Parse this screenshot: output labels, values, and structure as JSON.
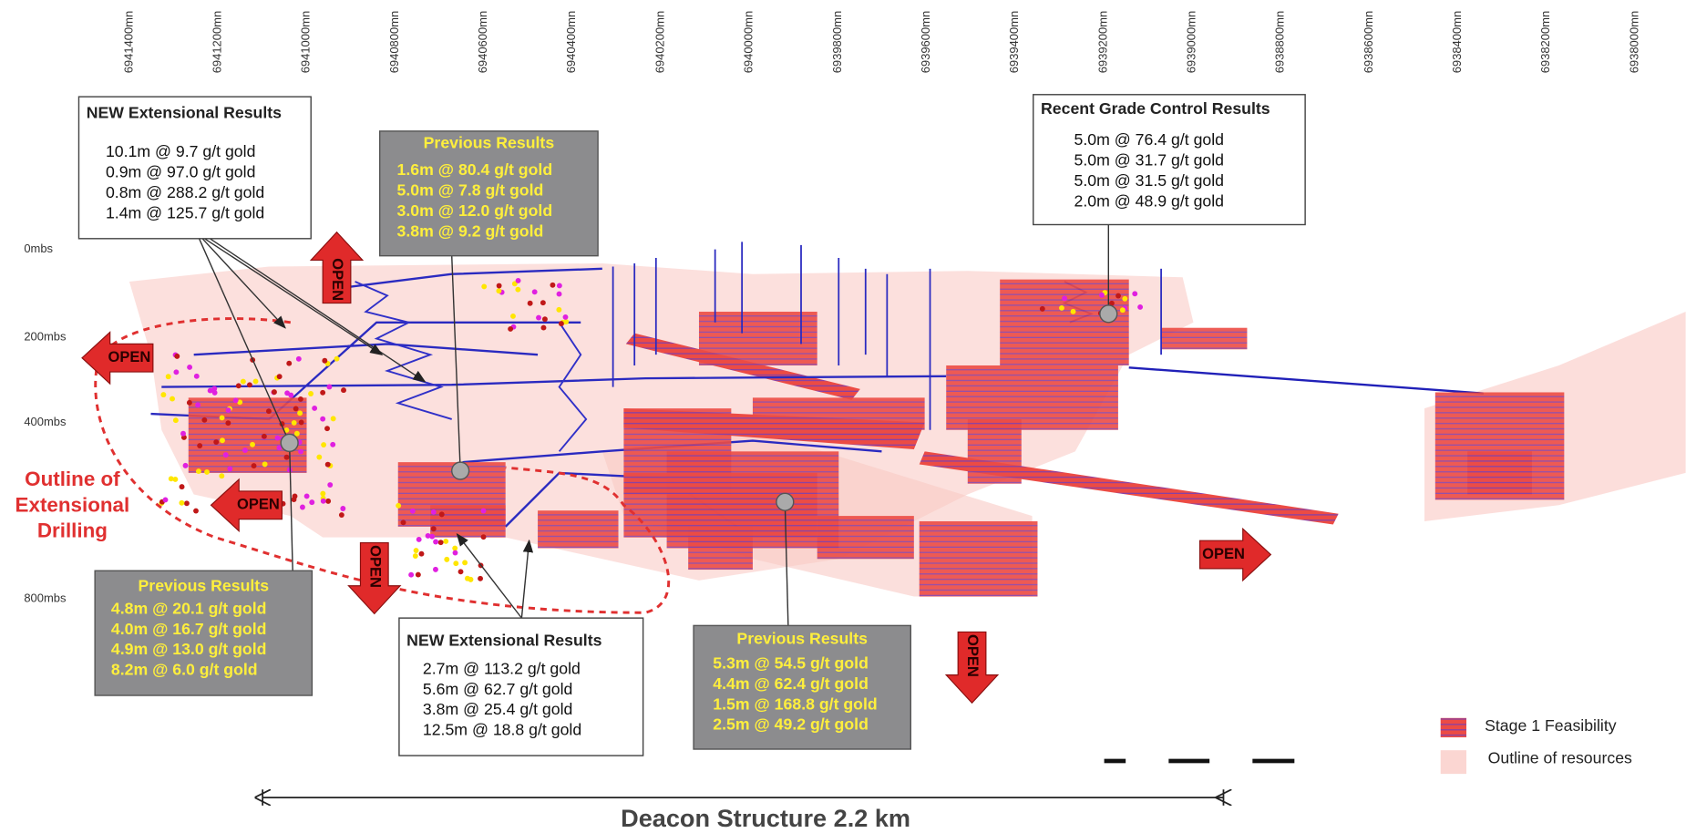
{
  "northings": [
    "6941400mn",
    "6941200mn",
    "6941000mn",
    "6940800mn",
    "6940600mn",
    "6940400mn",
    "6940200mn",
    "6940000mn",
    "6939800mn",
    "6939600mn",
    "6939400mn",
    "6939200mn",
    "6939000mn",
    "6938800mn",
    "6938600mn",
    "6938400mn",
    "6938200mn",
    "6938000mn"
  ],
  "depths": [
    "0mbs",
    "200mbs",
    "400mbs",
    "800mbs"
  ],
  "callouts": [
    {
      "title": "NEW Extensional Results",
      "lines": [
        "10.1m @ 9.7 g/t gold",
        "0.9m @ 97.0 g/t gold",
        "0.8m @ 288.2 g/t gold",
        "1.4m @ 125.7 g/t gold"
      ]
    },
    {
      "title": "Previous  Results",
      "lines": [
        "1.6m @ 80.4 g/t gold",
        "5.0m @ 7.8 g/t gold",
        "3.0m @ 12.0 g/t gold",
        "3.8m @ 9.2 g/t gold"
      ]
    },
    {
      "title": "Recent Grade Control Results",
      "lines": [
        "5.0m @ 76.4 g/t gold",
        "5.0m @ 31.7 g/t gold",
        "5.0m @ 31.5 g/t gold",
        "2.0m @ 48.9 g/t gold"
      ]
    },
    {
      "title": "Previous  Results",
      "lines": [
        "4.8m @ 20.1 g/t gold",
        "4.0m @ 16.7 g/t gold",
        "4.9m @ 13.0 g/t gold",
        "8.2m @ 6.0 g/t gold"
      ]
    },
    {
      "title": "NEW Extensional Results",
      "lines": [
        "2.7m @ 113.2 g/t gold",
        "5.6m @ 62.7 g/t gold",
        "3.8m @ 25.4 g/t gold",
        "12.5m @ 18.8 g/t gold"
      ]
    },
    {
      "title": "Previous  Results",
      "lines": [
        "5.3m @ 54.5 g/t gold",
        "4.4m @ 62.4 g/t gold",
        "1.5m @ 168.8 g/t gold",
        "2.5m @ 49.2 g/t gold"
      ]
    }
  ],
  "open_labels": [
    "OPEN",
    "OPEN",
    "OPEN",
    "OPEN",
    "OPEN",
    "OPEN"
  ],
  "outline_label": [
    "Outline of",
    "Extensional",
    "Drilling"
  ],
  "legend": [
    "Stage 1 Feasibility",
    "Outline of resources"
  ],
  "scale_title": "Deacon Structure 2.2 km"
}
